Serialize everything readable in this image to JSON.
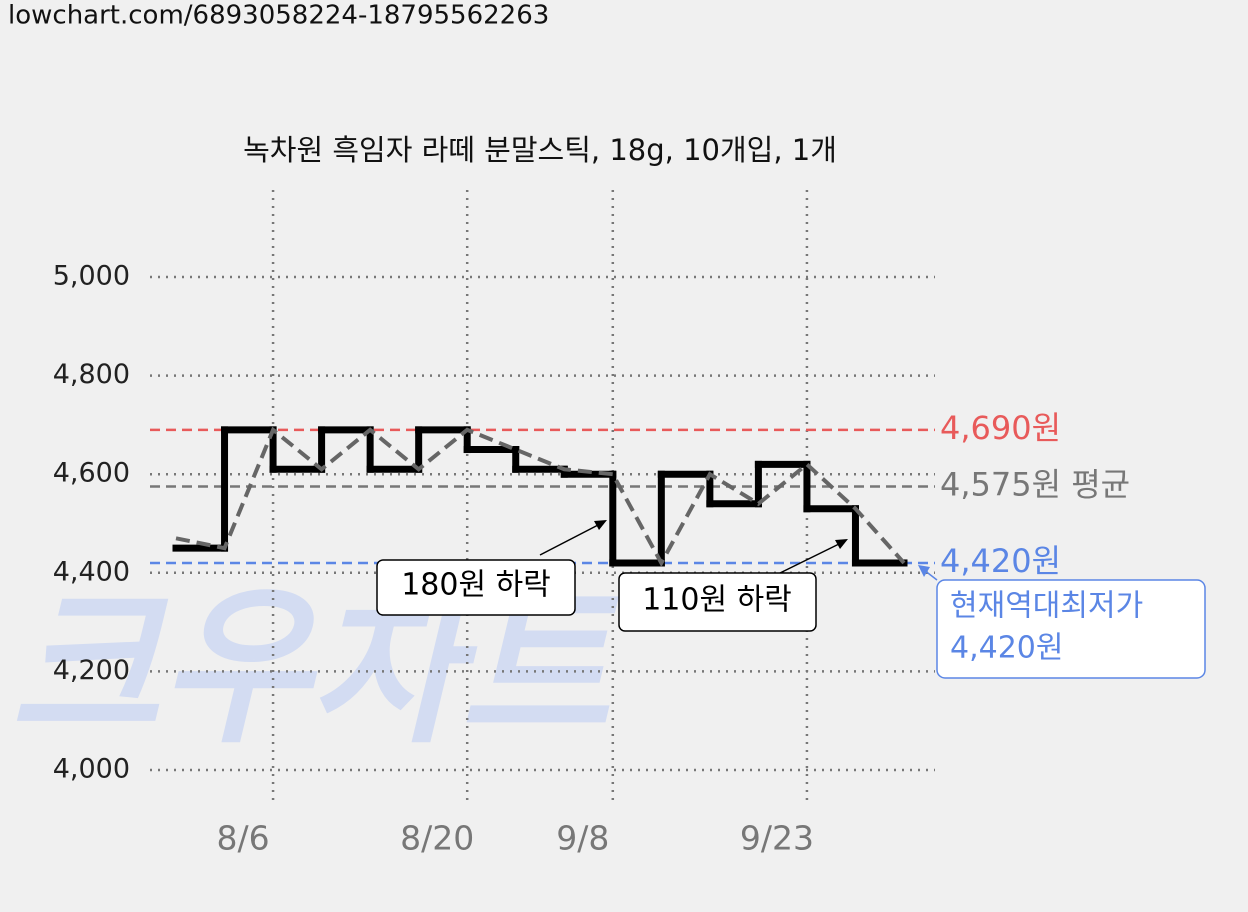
{
  "url": "lowchart.com/6893058224-18795562263",
  "watermark": "크우차트",
  "chart_data": {
    "type": "step",
    "title": "녹차원 흑임자 라떼 분말스틱, 18g, 10개입, 1개",
    "categories": [
      null,
      null,
      "8/6",
      null,
      null,
      null,
      "8/20",
      null,
      null,
      "9/8",
      null,
      null,
      null,
      "9/23",
      null,
      null
    ],
    "series": [
      {
        "color": "#000000",
        "style": "step",
        "values": [
          4450,
          4690,
          4610,
          4690,
          4610,
          4690,
          4650,
          4610,
          4600,
          4420,
          4600,
          4540,
          4620,
          4530,
          4420,
          4420
        ]
      },
      {
        "color": "#666666",
        "style": "dashed",
        "values": [
          4470,
          4450,
          4690,
          4610,
          4690,
          4610,
          4690,
          4650,
          4610,
          4600,
          4420,
          4600,
          4540,
          4620,
          4530,
          4420
        ]
      }
    ],
    "ylim": [
      4000,
      5000
    ],
    "yticks": [
      {
        "value": 4000,
        "label": "4,000"
      },
      {
        "value": 4200,
        "label": "4,200"
      },
      {
        "value": 4400,
        "label": "4,400"
      },
      {
        "value": 4600,
        "label": "4,600"
      },
      {
        "value": 4800,
        "label": "4,800"
      },
      {
        "value": 5000,
        "label": "5,000"
      }
    ],
    "grid": true,
    "reference_lines": [
      {
        "value": 4690,
        "label": "4,690원",
        "color": "#e85a5a"
      },
      {
        "value": 4575,
        "label": "4,575원 평균",
        "color": "#777777"
      },
      {
        "value": 4420,
        "label": "4,420원",
        "color": "#5b86e5"
      }
    ],
    "annotations": [
      "180원 하락",
      "110원 하락"
    ],
    "current_low": [
      "현재역대최저가",
      "4,420원"
    ]
  }
}
